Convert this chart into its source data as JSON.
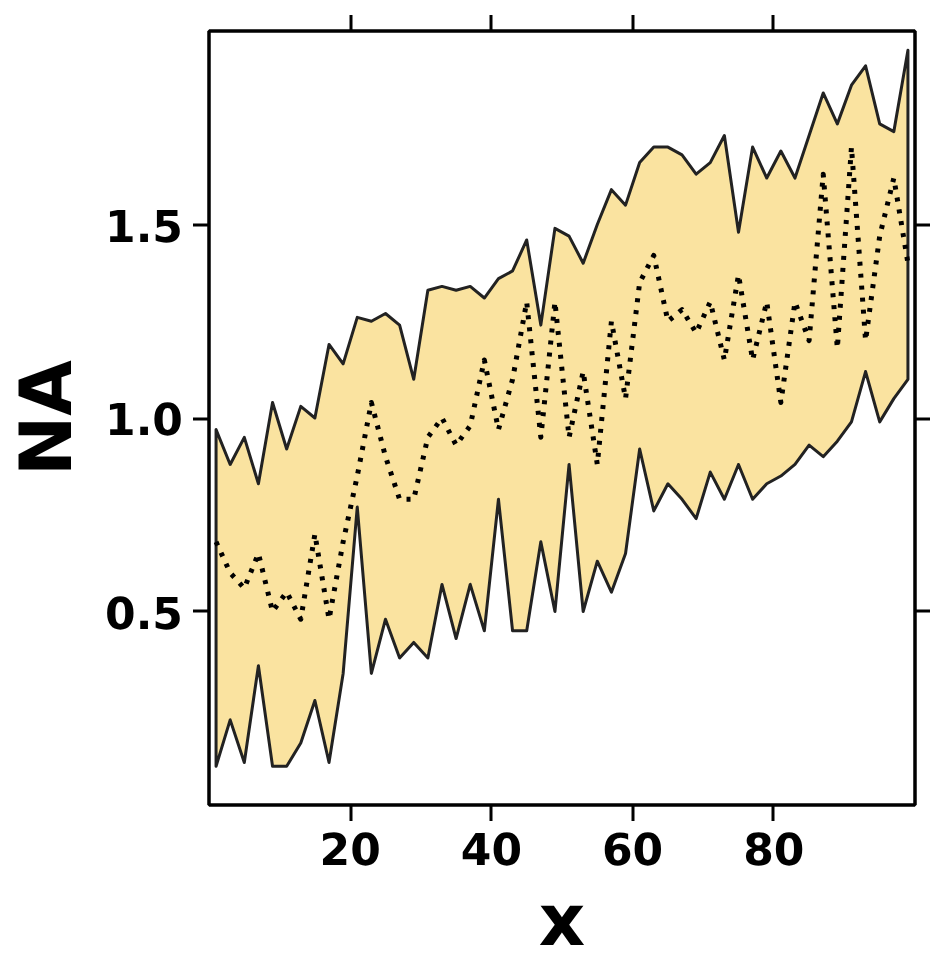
{
  "chart_data": {
    "type": "line",
    "xlabel": "x",
    "ylabel": "NA",
    "xlim": [
      0,
      100
    ],
    "ylim": [
      0,
      2
    ],
    "xticks": [
      20,
      40,
      60,
      80
    ],
    "yticks": [
      {
        "value": 0.5,
        "label": "0.5"
      },
      {
        "value": 1,
        "label": "1.0"
      },
      {
        "value": 1.5,
        "label": "1.5"
      }
    ],
    "grid": false,
    "marker": "none",
    "x": [
      1,
      3,
      5,
      7,
      9,
      11,
      13,
      15,
      17,
      19,
      21,
      23,
      25,
      27,
      29,
      31,
      33,
      35,
      37,
      39,
      41,
      43,
      45,
      47,
      49,
      51,
      53,
      55,
      57,
      59,
      61,
      63,
      65,
      67,
      69,
      71,
      73,
      75,
      77,
      79,
      81,
      83,
      85,
      87,
      89,
      91,
      93,
      95,
      97,
      99
    ],
    "series": [
      {
        "color": "#000000",
        "line_style": "dotted",
        "values": [
          0.68,
          0.6,
          0.56,
          0.65,
          0.5,
          0.55,
          0.48,
          0.7,
          0.48,
          0.68,
          0.85,
          1.04,
          0.9,
          0.79,
          0.79,
          0.95,
          1.0,
          0.93,
          0.98,
          1.15,
          0.97,
          1.1,
          1.3,
          0.95,
          1.3,
          0.95,
          1.12,
          0.88,
          1.25,
          1.05,
          1.35,
          1.42,
          1.25,
          1.28,
          1.22,
          1.3,
          1.15,
          1.37,
          1.15,
          1.3,
          1.04,
          1.3,
          1.2,
          1.63,
          1.18,
          1.7,
          1.2,
          1.47,
          1.62,
          1.4
        ],
        "lower": [
          0.1,
          0.22,
          0.11,
          0.36,
          0.1,
          0.1,
          0.16,
          0.27,
          0.11,
          0.34,
          0.77,
          0.34,
          0.48,
          0.38,
          0.42,
          0.38,
          0.57,
          0.43,
          0.57,
          0.45,
          0.79,
          0.45,
          0.45,
          0.68,
          0.5,
          0.88,
          0.5,
          0.63,
          0.55,
          0.65,
          0.92,
          0.76,
          0.83,
          0.79,
          0.74,
          0.86,
          0.79,
          0.88,
          0.79,
          0.83,
          0.85,
          0.88,
          0.93,
          0.9,
          0.94,
          0.99,
          1.12,
          0.99,
          1.05,
          1.1
        ],
        "upper": [
          0.97,
          0.88,
          0.95,
          0.83,
          1.04,
          0.92,
          1.03,
          1.0,
          1.19,
          1.14,
          1.26,
          1.25,
          1.27,
          1.24,
          1.1,
          1.33,
          1.34,
          1.33,
          1.34,
          1.31,
          1.36,
          1.38,
          1.46,
          1.24,
          1.49,
          1.47,
          1.4,
          1.5,
          1.59,
          1.55,
          1.66,
          1.7,
          1.7,
          1.68,
          1.63,
          1.66,
          1.73,
          1.48,
          1.7,
          1.62,
          1.69,
          1.62,
          1.73,
          1.84,
          1.76,
          1.86,
          1.91,
          1.76,
          1.74,
          1.95
        ]
      }
    ]
  }
}
